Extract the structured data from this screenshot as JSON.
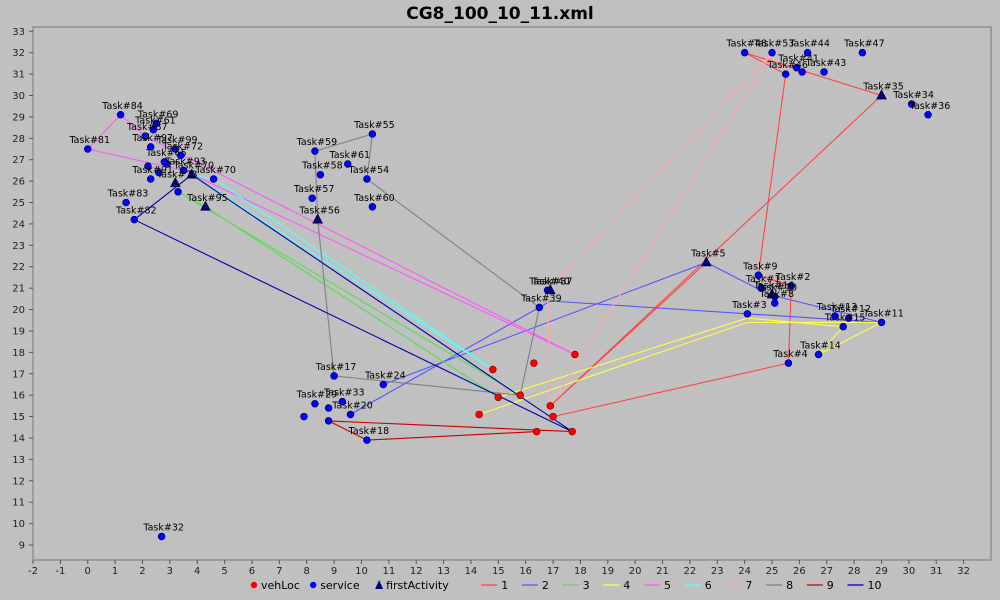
{
  "chart_data": {
    "type": "scatter",
    "title": "CG8_100_10_11.xml",
    "xlim": [
      -2,
      33
    ],
    "ylim": [
      8.3,
      33.2
    ],
    "xticks": [
      -2,
      -1,
      0,
      1,
      2,
      3,
      4,
      5,
      6,
      7,
      8,
      9,
      10,
      11,
      12,
      13,
      14,
      15,
      16,
      17,
      18,
      19,
      20,
      21,
      22,
      23,
      24,
      25,
      26,
      27,
      28,
      29,
      30,
      31,
      32
    ],
    "yticks": [
      9,
      10,
      11,
      12,
      13,
      14,
      15,
      16,
      17,
      18,
      19,
      20,
      21,
      22,
      23,
      24,
      25,
      26,
      27,
      28,
      29,
      30,
      31,
      32,
      33
    ],
    "grid": false,
    "legend_position": "bottom",
    "legend": {
      "markers": [
        {
          "label": "vehLoc",
          "shape": "circle",
          "color": "#ff0000"
        },
        {
          "label": "service",
          "shape": "circle",
          "color": "#0000ff"
        },
        {
          "label": "firstActivity",
          "shape": "triangle",
          "color": "#000080"
        }
      ],
      "lines": [
        {
          "label": "1",
          "color": "#ff4444"
        },
        {
          "label": "2",
          "color": "#5555ff"
        },
        {
          "label": "3",
          "color": "#55dd55"
        },
        {
          "label": "4",
          "color": "#ffff44"
        },
        {
          "label": "5",
          "color": "#ff55ff"
        },
        {
          "label": "6",
          "color": "#55ffff"
        },
        {
          "label": "7",
          "color": "#ffaaaa"
        },
        {
          "label": "8",
          "color": "#808080"
        },
        {
          "label": "9",
          "color": "#cc0000"
        },
        {
          "label": "10",
          "color": "#0000aa"
        }
      ]
    },
    "series": [
      {
        "name": "vehLoc",
        "points": [
          [
            17.8,
            17.9
          ],
          [
            16.3,
            17.5
          ],
          [
            14.8,
            17.2
          ],
          [
            14.3,
            15.1
          ],
          [
            15.0,
            15.9
          ],
          [
            15.8,
            16.0
          ],
          [
            16.9,
            15.5
          ],
          [
            17.0,
            15.0
          ],
          [
            17.7,
            14.3
          ],
          [
            16.4,
            14.3
          ]
        ]
      },
      {
        "name": "service",
        "points": [
          {
            "label": "Task#84",
            "x": 1.2,
            "y": 29.1
          },
          {
            "label": "Task#69",
            "x": 2.5,
            "y": 28.7
          },
          {
            "label": "Task#61",
            "x": 2.4,
            "y": 28.4
          },
          {
            "label": "Task#87",
            "x": 2.1,
            "y": 28.1
          },
          {
            "label": "Task#81",
            "x": 0.0,
            "y": 27.5
          },
          {
            "label": "Task#99",
            "x": 3.2,
            "y": 27.5
          },
          {
            "label": "Task#97",
            "x": 2.3,
            "y": 27.6
          },
          {
            "label": "Task#72",
            "x": 3.4,
            "y": 27.2
          },
          {
            "label": "Task#65",
            "x": 2.8,
            "y": 26.9
          },
          {
            "label": "Task#93",
            "x": 3.5,
            "y": 26.5
          },
          {
            "label": "Task#70",
            "x": 4.6,
            "y": 26.1
          },
          {
            "label": "Task#91",
            "x": 2.3,
            "y": 26.1
          },
          {
            "label": "Task#83",
            "x": 1.4,
            "y": 25.0
          },
          {
            "label": "Task#82",
            "x": 1.7,
            "y": 24.2
          },
          {
            "label": "",
            "x": 2.6,
            "y": 26.4
          },
          {
            "label": "",
            "x": 2.9,
            "y": 26.8
          },
          {
            "label": "",
            "x": 3.3,
            "y": 25.5
          },
          {
            "label": "",
            "x": 2.2,
            "y": 26.7
          },
          {
            "label": "Task#59",
            "x": 8.3,
            "y": 27.4
          },
          {
            "label": "Task#55",
            "x": 10.4,
            "y": 28.2
          },
          {
            "label": "Task#61",
            "x": 9.5,
            "y": 26.8
          },
          {
            "label": "Task#58",
            "x": 8.5,
            "y": 26.3
          },
          {
            "label": "Task#54",
            "x": 10.2,
            "y": 26.1
          },
          {
            "label": "Task#57",
            "x": 8.2,
            "y": 25.2
          },
          {
            "label": "Task#60",
            "x": 10.4,
            "y": 24.8
          },
          {
            "label": "Task#40",
            "x": 16.8,
            "y": 20.9
          },
          {
            "label": "Task#39",
            "x": 16.5,
            "y": 20.1
          },
          {
            "label": "Task#17",
            "x": 9.0,
            "y": 16.9
          },
          {
            "label": "Task#24",
            "x": 10.8,
            "y": 16.5
          },
          {
            "label": "Task#29",
            "x": 8.3,
            "y": 15.6
          },
          {
            "label": "Task#33",
            "x": 9.3,
            "y": 15.7
          },
          {
            "label": "Task#20",
            "x": 9.6,
            "y": 15.1
          },
          {
            "label": "",
            "x": 7.9,
            "y": 15.0
          },
          {
            "label": "",
            "x": 8.8,
            "y": 15.4
          },
          {
            "label": "Task#18",
            "x": 10.2,
            "y": 13.9
          },
          {
            "label": "",
            "x": 8.8,
            "y": 14.8
          },
          {
            "label": "Task#32",
            "x": 2.7,
            "y": 9.4
          },
          {
            "label": "Task#9",
            "x": 24.5,
            "y": 21.6
          },
          {
            "label": "Task#2",
            "x": 25.7,
            "y": 21.1
          },
          {
            "label": "Task#1",
            "x": 24.6,
            "y": 21.0
          },
          {
            "label": "Task#10",
            "x": 25.1,
            "y": 20.6
          },
          {
            "label": "Task#8",
            "x": 25.1,
            "y": 20.3
          },
          {
            "label": "Task#3",
            "x": 24.1,
            "y": 19.8
          },
          {
            "label": "Task#13",
            "x": 27.3,
            "y": 19.7
          },
          {
            "label": "Task#12",
            "x": 27.8,
            "y": 19.6
          },
          {
            "label": "Task#15",
            "x": 27.6,
            "y": 19.2
          },
          {
            "label": "Task#11",
            "x": 29.0,
            "y": 19.4
          },
          {
            "label": "Task#14",
            "x": 26.7,
            "y": 17.9
          },
          {
            "label": "Task#4",
            "x": 25.6,
            "y": 17.5
          },
          {
            "label": "Task#44",
            "x": 26.3,
            "y": 32.0
          },
          {
            "label": "Task#47",
            "x": 28.3,
            "y": 32.0
          },
          {
            "label": "Task#48",
            "x": 24.0,
            "y": 32.0
          },
          {
            "label": "Task#53",
            "x": 25.0,
            "y": 32.0
          },
          {
            "label": "Task#43",
            "x": 26.9,
            "y": 31.1
          },
          {
            "label": "Task#46",
            "x": 25.5,
            "y": 31.0
          },
          {
            "label": "Task#41",
            "x": 25.9,
            "y": 31.3
          },
          {
            "label": "",
            "x": 26.1,
            "y": 31.1
          },
          {
            "label": "Task#34",
            "x": 30.1,
            "y": 29.6
          },
          {
            "label": "Task#36",
            "x": 30.7,
            "y": 29.1
          }
        ]
      },
      {
        "name": "firstActivity",
        "points": [
          {
            "label": "Task#95",
            "x": 4.3,
            "y": 24.8
          },
          {
            "label": "Task#73",
            "x": 3.2,
            "y": 25.9
          },
          {
            "label": "Task#70",
            "x": 3.8,
            "y": 26.3
          },
          {
            "label": "Task#56",
            "x": 8.4,
            "y": 24.2
          },
          {
            "label": "Task#37",
            "x": 16.9,
            "y": 20.9
          },
          {
            "label": "Task#5",
            "x": 22.6,
            "y": 22.2
          },
          {
            "label": "Task#35",
            "x": 29.0,
            "y": 30.0
          },
          {
            "label": "Task#16",
            "x": 25.0,
            "y": 20.7
          }
        ]
      }
    ],
    "routes": [
      {
        "name": "1",
        "color": "#ff4444",
        "points": [
          [
            16.9,
            15.5
          ],
          [
            22.6,
            22.2
          ]
        ]
      },
      {
        "name": "1",
        "color": "#ff4444",
        "points": [
          [
            17.0,
            15.0
          ],
          [
            25.6,
            17.5
          ],
          [
            25.7,
            21.1
          ],
          [
            24.5,
            21.6
          ],
          [
            25.5,
            31.0
          ],
          [
            24.0,
            32.0
          ],
          [
            29.0,
            30.0
          ],
          [
            16.9,
            15.5
          ]
        ]
      },
      {
        "name": "2",
        "color": "#5555ff",
        "points": [
          [
            9.6,
            15.1
          ],
          [
            16.5,
            20.1
          ],
          [
            16.9,
            20.4
          ],
          [
            24.1,
            19.8
          ],
          [
            29.0,
            19.4
          ],
          [
            24.9,
            20.7
          ],
          [
            22.6,
            22.2
          ],
          [
            10.8,
            16.5
          ]
        ]
      },
      {
        "name": "3",
        "color": "#55dd55",
        "points": [
          [
            15.0,
            15.9
          ],
          [
            4.3,
            24.8
          ],
          [
            3.3,
            25.5
          ],
          [
            15.8,
            16.0
          ]
        ]
      },
      {
        "name": "4",
        "color": "#ffff44",
        "points": [
          [
            14.3,
            15.1
          ],
          [
            24.1,
            19.4
          ],
          [
            29.0,
            19.4
          ],
          [
            26.7,
            17.9
          ],
          [
            27.6,
            19.2
          ],
          [
            24.1,
            19.6
          ],
          [
            15.0,
            15.9
          ]
        ]
      },
      {
        "name": "5",
        "color": "#ff55ff",
        "points": [
          [
            17.8,
            17.9
          ],
          [
            2.1,
            28.1
          ],
          [
            1.2,
            29.1
          ],
          [
            0.0,
            27.5
          ],
          [
            3.5,
            26.5
          ],
          [
            17.8,
            17.9
          ]
        ]
      },
      {
        "name": "6",
        "color": "#55ffff",
        "points": [
          [
            14.8,
            17.2
          ],
          [
            3.8,
            26.3
          ],
          [
            4.6,
            26.1
          ],
          [
            14.8,
            17.2
          ]
        ]
      },
      {
        "name": "7",
        "color": "#ffaaaa",
        "points": [
          [
            16.9,
            15.5
          ],
          [
            16.8,
            20.9
          ],
          [
            25.0,
            32.0
          ],
          [
            16.9,
            15.5
          ]
        ]
      },
      {
        "name": "8",
        "color": "#808080",
        "points": [
          [
            15.8,
            16.0
          ],
          [
            9.0,
            16.9
          ],
          [
            8.4,
            24.2
          ],
          [
            8.3,
            27.4
          ],
          [
            10.4,
            28.2
          ],
          [
            10.2,
            26.1
          ],
          [
            16.5,
            20.1
          ],
          [
            15.8,
            16.0
          ]
        ]
      },
      {
        "name": "9",
        "color": "#cc0000",
        "points": [
          [
            16.4,
            14.3
          ],
          [
            10.2,
            13.9
          ],
          [
            8.8,
            14.8
          ],
          [
            17.7,
            14.3
          ]
        ]
      },
      {
        "name": "10",
        "color": "#0000aa",
        "points": [
          [
            17.7,
            14.3
          ],
          [
            3.8,
            26.3
          ],
          [
            1.7,
            24.2
          ],
          [
            17.7,
            14.3
          ]
        ]
      }
    ]
  }
}
